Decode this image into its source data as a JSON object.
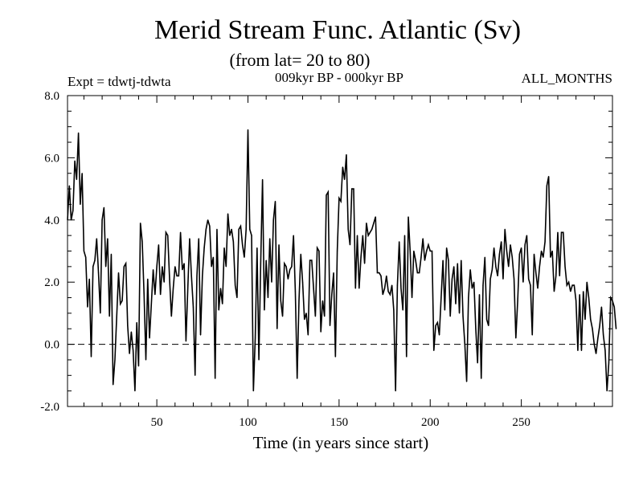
{
  "chart_data": {
    "type": "line",
    "title": "Merid Stream Func. Atlantic (Sv)",
    "subtitle": "(from lat= 20 to 80)",
    "experiment_label": "Expt = tdwtj-tdwta",
    "period_label": "009kyr BP - 000kyr BP",
    "months_label": "ALL_MONTHS",
    "xlabel": "Time (in years since start)",
    "ylabel": "",
    "xlim": [
      1,
      300
    ],
    "ylim": [
      -2.0,
      8.0
    ],
    "x_ticks": [
      50,
      100,
      150,
      200,
      250
    ],
    "y_ticks": [
      -2.0,
      0.0,
      2.0,
      4.0,
      6.0,
      8.0
    ],
    "y_tick_labels": [
      "-2.0",
      "0.0",
      "2.0",
      "4.0",
      "6.0",
      "8.0"
    ],
    "reference_line": 0.0,
    "grid": false,
    "series": [
      {
        "name": "Merid Stream Func. Atlantic",
        "x_start": 1,
        "x_step": 1,
        "values": [
          4.0,
          5.1,
          4.0,
          4.3,
          5.9,
          5.3,
          6.8,
          4.5,
          5.5,
          3.0,
          2.8,
          1.2,
          2.1,
          -0.4,
          2.5,
          2.7,
          3.4,
          2.3,
          1.0,
          4.0,
          4.4,
          2.5,
          3.4,
          0.9,
          2.9,
          -1.3,
          -0.5,
          0.9,
          2.3,
          1.3,
          1.4,
          2.5,
          2.6,
          0.6,
          -0.3,
          0.4,
          -0.2,
          -1.5,
          0.7,
          -0.7,
          3.9,
          3.3,
          1.6,
          -0.5,
          2.1,
          0.2,
          1.3,
          2.4,
          1.6,
          2.5,
          3.2,
          1.6,
          2.5,
          2.0,
          3.6,
          3.5,
          2.1,
          0.9,
          1.8,
          2.5,
          2.2,
          2.2,
          3.6,
          2.4,
          2.6,
          0.1,
          1.8,
          3.4,
          2.2,
          1.2,
          -1.0,
          2.2,
          3.4,
          0.3,
          2.2,
          3.1,
          3.7,
          4.0,
          3.8,
          2.5,
          2.8,
          -1.1,
          3.7,
          1.1,
          1.8,
          1.3,
          3.1,
          2.5,
          4.2,
          3.5,
          3.7,
          3.3,
          1.9,
          1.5,
          3.7,
          3.8,
          3.2,
          2.8,
          3.7,
          6.9,
          3.7,
          3.5,
          -1.5,
          0.2,
          3.1,
          -0.5,
          2.6,
          5.3,
          1.1,
          2.7,
          1.5,
          3.4,
          2.0,
          4.0,
          4.6,
          0.5,
          3.2,
          1.4,
          0.9,
          2.6,
          2.5,
          2.1,
          2.4,
          2.5,
          3.5,
          1.7,
          -1.1,
          1.4,
          2.9,
          2.0,
          0.8,
          1.0,
          0.3,
          2.7,
          2.7,
          1.8,
          0.9,
          3.1,
          3.0,
          0.4,
          1.4,
          0.9,
          4.8,
          4.9,
          0.6,
          1.6,
          2.3,
          -0.4,
          3.0,
          4.7,
          4.6,
          5.7,
          5.3,
          6.1,
          3.7,
          3.2,
          5.0,
          5.0,
          1.8,
          3.5,
          1.8,
          2.8,
          3.5,
          2.6,
          3.9,
          3.5,
          3.6,
          3.7,
          3.9,
          4.1,
          2.3,
          2.3,
          2.2,
          1.6,
          1.8,
          2.2,
          1.7,
          1.6,
          1.9,
          1.1,
          -1.5,
          1.9,
          3.3,
          1.8,
          1.1,
          3.5,
          -0.4,
          4.1,
          3.0,
          1.5,
          3.0,
          2.7,
          2.3,
          2.3,
          2.8,
          3.4,
          2.7,
          3.0,
          3.2,
          3.0,
          3.0,
          -0.2,
          0.6,
          0.7,
          0.3,
          1.5,
          2.7,
          1.1,
          3.1,
          2.7,
          0.9,
          2.1,
          2.5,
          1.3,
          2.6,
          1.0,
          2.7,
          0.9,
          0.0,
          -1.2,
          1.5,
          2.4,
          1.8,
          2.0,
          0.5,
          -0.6,
          1.6,
          -1.1,
          1.9,
          2.8,
          0.8,
          0.6,
          2.1,
          2.4,
          3.1,
          2.5,
          2.2,
          2.9,
          3.3,
          2.1,
          3.7,
          3.0,
          2.5,
          3.2,
          2.8,
          2.1,
          0.2,
          1.4,
          2.9,
          3.1,
          2.0,
          3.2,
          3.5,
          2.1,
          1.9,
          0.3,
          2.9,
          2.3,
          1.8,
          2.5,
          3.0,
          2.8,
          3.3,
          5.1,
          5.4,
          2.8,
          3.0,
          1.7,
          2.2,
          3.6,
          2.2,
          3.6,
          3.6,
          2.5,
          1.9,
          2.0,
          1.7,
          1.9,
          1.9,
          1.4,
          -0.2,
          1.6,
          -0.2,
          1.7,
          0.8,
          2.0,
          1.5,
          0.8,
          0.5,
          0.0,
          -0.3,
          0.2,
          0.6,
          1.2,
          0.3,
          -0.2,
          -1.5,
          -0.6,
          1.5,
          1.4,
          1.2,
          0.5
        ]
      }
    ]
  }
}
